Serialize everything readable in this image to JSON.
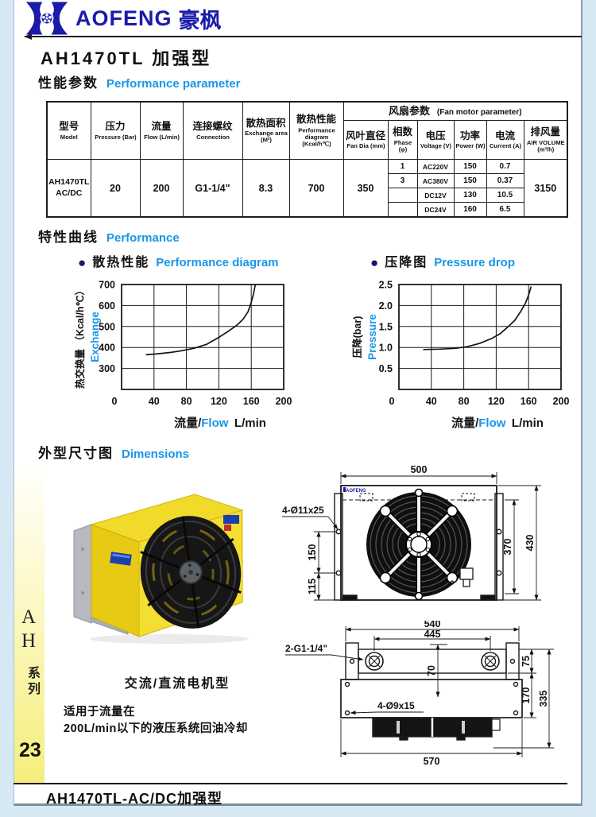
{
  "colors": {
    "brand_blue": "#1a1aab",
    "accent_blue": "#1896e8",
    "bullet_purple": "#2d0b70",
    "strip_yellow": "#f5ee7c",
    "product_yellow": "#eccf1d"
  },
  "header": {
    "brand_en": "AOFENG",
    "brand_cn": "豪枫"
  },
  "title": "AH1470TL 加强型",
  "sections": {
    "param": {
      "cn": "性能参数",
      "en": "Performance  parameter"
    },
    "curve": {
      "cn": "特性曲线",
      "en": "Performance"
    },
    "dims": {
      "cn": "外型尺寸图",
      "en": "Dimensions"
    }
  },
  "table": {
    "columns": [
      {
        "cn": "型号",
        "en": "Model"
      },
      {
        "cn": "压力",
        "en": "Pressure (Bar)"
      },
      {
        "cn": "流量",
        "en": "Flow (L/min)"
      },
      {
        "cn": "连接螺纹",
        "en": "Connection"
      },
      {
        "cn": "散热面积",
        "en": "Exchange area (M²)"
      },
      {
        "cn": "散热性能",
        "en": "Performance diagram (Kcal/h℃)"
      },
      {
        "cn": "风叶直径",
        "en": "Fan Dia (mm)"
      },
      {
        "cn": "相数",
        "en": "Phase (φ)"
      },
      {
        "cn": "电压",
        "en": "Voltage (V)"
      },
      {
        "cn": "功率",
        "en": "Power (W)"
      },
      {
        "cn": "电流",
        "en": "Current (A)"
      },
      {
        "cn": "排风量",
        "en": "AIR VOLUME (m³/h)"
      }
    ],
    "fan_group": {
      "cn": "风扇参数",
      "en": "(Fan motor parameter)"
    },
    "row": {
      "model_line1": "AH1470TL",
      "model_line2": "AC/DC",
      "pressure": "20",
      "flow": "200",
      "connection": "G1-1/4\"",
      "area": "8.3",
      "performance": "700",
      "fan_dia": "350",
      "air_volume": "3150",
      "fan_rows": [
        {
          "phase": "1",
          "voltage": "AC220V",
          "power": "150",
          "current": "0.7"
        },
        {
          "phase": "3",
          "voltage": "AC380V",
          "power": "150",
          "current": "0.37"
        },
        {
          "phase": "",
          "voltage": "DC12V",
          "power": "130",
          "current": "10.5"
        },
        {
          "phase": "",
          "voltage": "DC24V",
          "power": "160",
          "current": "6.5"
        }
      ]
    }
  },
  "chart_data": [
    {
      "type": "line",
      "title_cn": "散热性能",
      "title_en": "Performance diagram",
      "ylabel_cn": "热交换量",
      "ylabel_unit": "（Kcal/h℃）",
      "ylabel_en": "Exchange",
      "xlabel_cn": "流量/",
      "xlabel_en": "Flow",
      "xlabel_unit": "L/min",
      "xlim": [
        0,
        200
      ],
      "ylim": [
        200,
        700
      ],
      "xticks": [
        0,
        40,
        80,
        120,
        160,
        200
      ],
      "xtick_labels": [
        "0",
        "40",
        "80",
        "120",
        "160",
        "200"
      ],
      "yticks": [
        300,
        400,
        500,
        600,
        700
      ],
      "ytick_labels": [
        "300",
        "400",
        "500",
        "600",
        "700"
      ],
      "grid": true,
      "legend": "none",
      "x": [
        30,
        45,
        60,
        75,
        90,
        105,
        120,
        132,
        142,
        150,
        156,
        160,
        163,
        165
      ],
      "y": [
        365,
        370,
        376,
        385,
        397,
        415,
        448,
        478,
        505,
        535,
        570,
        615,
        660,
        700
      ]
    },
    {
      "type": "line",
      "title_cn": "压降图",
      "title_en": "Pressure drop",
      "ylabel_cn": "压降(bar)",
      "ylabel_unit": "",
      "ylabel_en": "Pressure",
      "xlabel_cn": "流量/",
      "xlabel_en": "Flow",
      "xlabel_unit": "L/min",
      "xlim": [
        0,
        200
      ],
      "ylim": [
        0,
        2.5
      ],
      "xticks": [
        0,
        40,
        80,
        120,
        160,
        200
      ],
      "xtick_labels": [
        "0",
        "40",
        "80",
        "120",
        "160",
        "200"
      ],
      "yticks": [
        0.5,
        1.0,
        1.5,
        2.0,
        2.5
      ],
      "ytick_labels": [
        "0.5",
        "1.0",
        "1.5",
        "2.0",
        "2.5"
      ],
      "grid": true,
      "legend": "none",
      "x": [
        30,
        50,
        70,
        85,
        100,
        115,
        125,
        135,
        143,
        150,
        156,
        160,
        163
      ],
      "y": [
        0.95,
        0.96,
        0.98,
        1.02,
        1.1,
        1.22,
        1.33,
        1.5,
        1.65,
        1.85,
        2.05,
        2.25,
        2.45
      ]
    }
  ],
  "drawings": {
    "front": {
      "logo": "AOFENG",
      "dim_top": "500",
      "dim_right_inner": "370",
      "dim_right_outer": "430",
      "dim_left_upper": "150",
      "dim_left_lower": "115",
      "hole_label": "4-Ø11x25"
    },
    "top": {
      "dim_540": "540",
      "dim_445": "445",
      "dim_75": "75",
      "dim_170": "170",
      "dim_335": "335",
      "dim_70": "70",
      "dim_570": "570",
      "port_label": "2-G1-1/4\"",
      "hole_label": "4-Ø9x15"
    }
  },
  "photo_caption": "交流/直流电机型",
  "description": {
    "line1": "适用于流量在",
    "line2": "200L/min以下的液压系统回油冷却"
  },
  "sidebar": {
    "letter1": "A",
    "letter2": "H",
    "series": "系列",
    "page_number": "23"
  },
  "footer": "AH1470TL-AC/DC加强型"
}
